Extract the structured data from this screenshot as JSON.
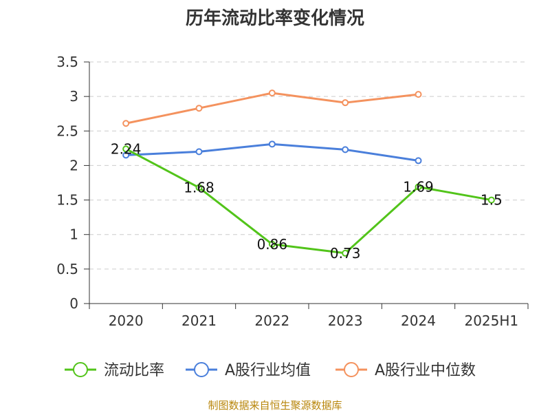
{
  "chart_data": {
    "type": "line",
    "title": "历年流动比率变化情况",
    "categories": [
      "2020",
      "2021",
      "2022",
      "2023",
      "2024",
      "2025H1"
    ],
    "ylim": [
      0,
      3.5
    ],
    "yticks": [
      "0",
      "0.5",
      "1",
      "1.5",
      "2",
      "2.5",
      "3",
      "3.5"
    ],
    "grid": true,
    "legend_position": "bottom",
    "series": [
      {
        "name": "流动比率",
        "color": "#52c41a",
        "values": [
          2.24,
          1.68,
          0.86,
          0.73,
          1.69,
          1.5
        ],
        "labels": [
          "2.24",
          "1.68",
          "0.86",
          "0.73",
          "1.69",
          "1.5"
        ]
      },
      {
        "name": "A股行业均值",
        "color": "#4a7fdb",
        "values": [
          2.15,
          2.2,
          2.31,
          2.23,
          2.07,
          null
        ]
      },
      {
        "name": "A股行业中位数",
        "color": "#f4925e",
        "values": [
          2.61,
          2.83,
          3.05,
          2.91,
          3.03,
          null
        ]
      }
    ]
  },
  "source": "制图数据来自恒生聚源数据库"
}
